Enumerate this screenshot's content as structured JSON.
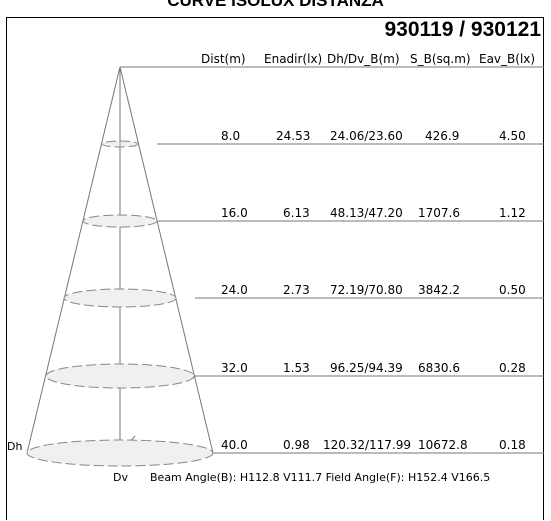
{
  "page_title": "CURVE ISOLUX DISTANZA",
  "model": "930119 / 930121",
  "headers": {
    "dist": "Dist(m)",
    "enadir": "Enadir(lx)",
    "dh_dv": "Dh/Dv_B(m)",
    "s_b": "S_B(sq.m)",
    "eav": "Eav_B(lx)"
  },
  "rows": [
    {
      "dist": "8.0",
      "enadir": "24.53",
      "dh_dv": "24.06/23.60",
      "s_b": "426.9",
      "eav": "4.50"
    },
    {
      "dist": "16.0",
      "enadir": "6.13",
      "dh_dv": "48.13/47.20",
      "s_b": "1707.6",
      "eav": "1.12"
    },
    {
      "dist": "24.0",
      "enadir": "2.73",
      "dh_dv": "72.19/70.80",
      "s_b": "3842.2",
      "eav": "0.50"
    },
    {
      "dist": "32.0",
      "enadir": "1.53",
      "dh_dv": "96.25/94.39",
      "s_b": "6830.6",
      "eav": "0.28"
    },
    {
      "dist": "40.0",
      "enadir": "0.98",
      "dh_dv": "120.32/117.99",
      "s_b": "10672.8",
      "eav": "0.18"
    }
  ],
  "labels": {
    "dh": "Dh",
    "dv": "Dv"
  },
  "footer": "Beam Angle(B): H112.8 V111.7  Field Angle(F): H152.4 V166.5"
}
